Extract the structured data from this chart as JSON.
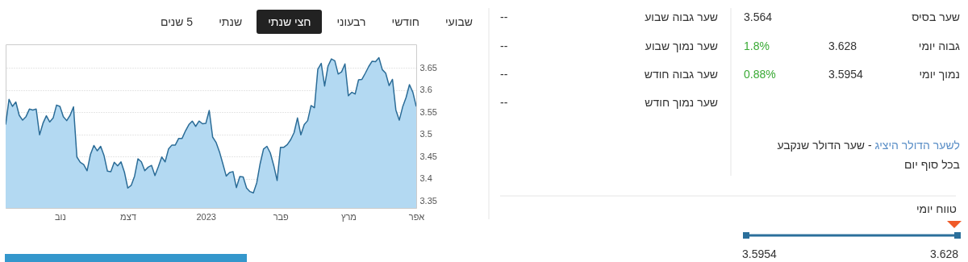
{
  "chart_data": [
    {
      "type": "area",
      "annotations": [
        "שבועי",
        "חודשי",
        "רבעוני",
        "חצי שנתי",
        "שנתי",
        "5 שנים"
      ],
      "categories": [
        null,
        null,
        null,
        null,
        null,
        null,
        null,
        null,
        null,
        null,
        null,
        null,
        null,
        null,
        null,
        null,
        "נוב",
        null,
        null,
        null,
        null,
        null,
        null,
        null,
        null,
        null,
        null,
        null,
        null,
        null,
        null,
        null,
        null,
        null,
        null,
        null,
        "דצמ",
        null,
        null,
        null,
        null,
        null,
        null,
        null,
        null,
        null,
        null,
        null,
        null,
        null,
        null,
        null,
        null,
        null,
        null,
        null,
        null,
        null,
        null,
        "2023",
        null,
        null,
        null,
        null,
        null,
        null,
        null,
        null,
        null,
        null,
        null,
        null,
        null,
        null,
        null,
        null,
        null,
        null,
        null,
        null,
        null,
        "פבר",
        null,
        null,
        null,
        null,
        null,
        null,
        null,
        null,
        null,
        null,
        null,
        null,
        null,
        null,
        null,
        null,
        null,
        null,
        null,
        "מרץ",
        null,
        null,
        null,
        null,
        null,
        null,
        null,
        null,
        null,
        null,
        null,
        null,
        null,
        null,
        null,
        null,
        null,
        null,
        null,
        "אפר"
      ],
      "series": [
        {
          "color": "#b3d9f2",
          "values": [
            3.522,
            3.579,
            3.563,
            3.573,
            3.543,
            3.532,
            3.54,
            3.557,
            3.555,
            3.557,
            3.499,
            3.525,
            3.542,
            3.528,
            3.537,
            3.566,
            3.563,
            3.54,
            3.531,
            3.543,
            3.562,
            3.449,
            3.437,
            3.432,
            3.418,
            3.455,
            3.475,
            3.463,
            3.473,
            3.452,
            3.417,
            3.416,
            3.437,
            3.429,
            3.438,
            3.415,
            3.379,
            3.385,
            3.406,
            3.445,
            3.438,
            3.418,
            3.426,
            3.43,
            3.407,
            3.427,
            3.449,
            3.438,
            3.467,
            3.476,
            3.476,
            3.491,
            3.491,
            3.508,
            3.522,
            3.53,
            3.518,
            3.53,
            3.524,
            3.525,
            3.554,
            3.494,
            3.482,
            3.461,
            3.434,
            3.406,
            3.414,
            3.416,
            3.38,
            3.405,
            3.404,
            3.379,
            3.371,
            3.368,
            3.391,
            3.434,
            3.467,
            3.473,
            3.458,
            3.43,
            3.396,
            3.471,
            3.471,
            3.477,
            3.488,
            3.504,
            3.537,
            3.499,
            3.522,
            3.531,
            3.565,
            3.56,
            3.647,
            3.66,
            3.609,
            3.654,
            3.67,
            3.666,
            3.636,
            3.641,
            3.659,
            3.587,
            3.595,
            3.591,
            3.623,
            3.624,
            3.638,
            3.653,
            3.665,
            3.664,
            3.673,
            3.646,
            3.638,
            3.61,
            3.624,
            3.555,
            3.532,
            3.562,
            3.583,
            3.612,
            3.595,
            3.563
          ]
        }
      ],
      "ylim": [
        3.334,
        3.703
      ],
      "yticks": [
        3.35,
        3.4,
        3.45,
        3.5,
        3.55,
        3.6,
        3.65
      ],
      "grid": "y"
    },
    {
      "type": "other",
      "annotations": [
        "שער בסיס",
        "3.564",
        "גבוה יומי",
        "3.628",
        "1.8%",
        "נמוך יומי",
        "3.5954",
        "0.88%",
        "שער גבוה שבוע",
        "--",
        "שער נמוך שבוע",
        "--",
        "שער גבוה חודש",
        "--",
        "שער נמוך חודש",
        "--",
        "לשער הדולר היציג",
        "- שער הדולר שנקבע בכל סוף יום",
        "טווח יומי",
        "3.5954",
        "3.628"
      ]
    }
  ]
}
